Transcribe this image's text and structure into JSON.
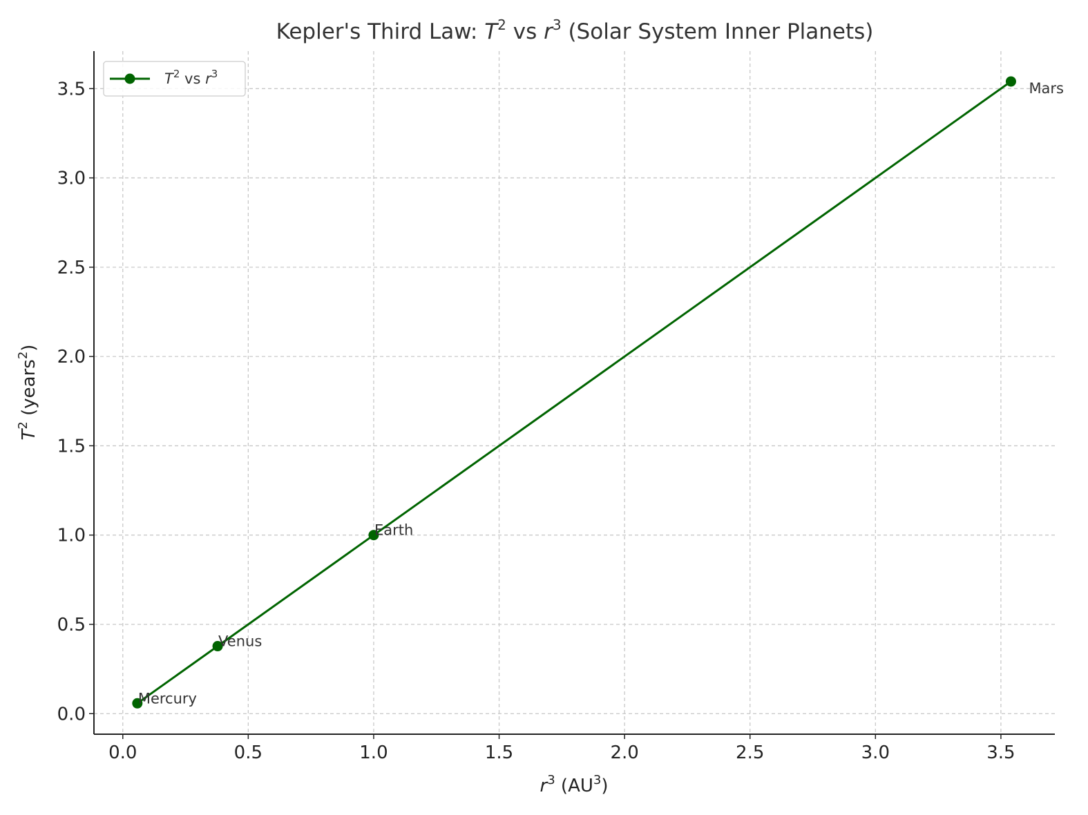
{
  "chart_data": {
    "type": "line",
    "title": {
      "prefix": "Kepler's Third Law: ",
      "t": "T",
      "t_exp": "2",
      "vs": " vs ",
      "r": "r",
      "r_exp": "3",
      "suffix": " (Solar System Inner Planets)"
    },
    "xlabel": {
      "var": "r",
      "var_exp": "3",
      "unit_open": " (AU",
      "unit_exp": "3",
      "unit_close": ")"
    },
    "ylabel": {
      "var": "T",
      "var_exp": "2",
      "unit_open": " (years",
      "unit_exp": "2",
      "unit_close": ")"
    },
    "xlim": [
      -0.115,
      3.715
    ],
    "ylim": [
      -0.115,
      3.71
    ],
    "xticks": [
      "0.0",
      "0.5",
      "1.0",
      "1.5",
      "2.0",
      "2.5",
      "3.0",
      "3.5"
    ],
    "yticks": [
      "0.0",
      "0.5",
      "1.0",
      "1.5",
      "2.0",
      "2.5",
      "3.0",
      "3.5"
    ],
    "grid": true,
    "legend_position": "top-left",
    "series": [
      {
        "name": {
          "t": "T",
          "t_exp": "2",
          "vs": " vs ",
          "r": "r",
          "r_exp": "3"
        },
        "color": "#006400",
        "marker": "circle",
        "points": [
          {
            "label": "Mercury",
            "x": 0.058,
            "y": 0.058
          },
          {
            "label": "Venus",
            "x": 0.378,
            "y": 0.378
          },
          {
            "label": "Earth",
            "x": 1.0,
            "y": 1.0
          },
          {
            "label": "Mars",
            "x": 3.54,
            "y": 3.54
          }
        ]
      }
    ]
  }
}
